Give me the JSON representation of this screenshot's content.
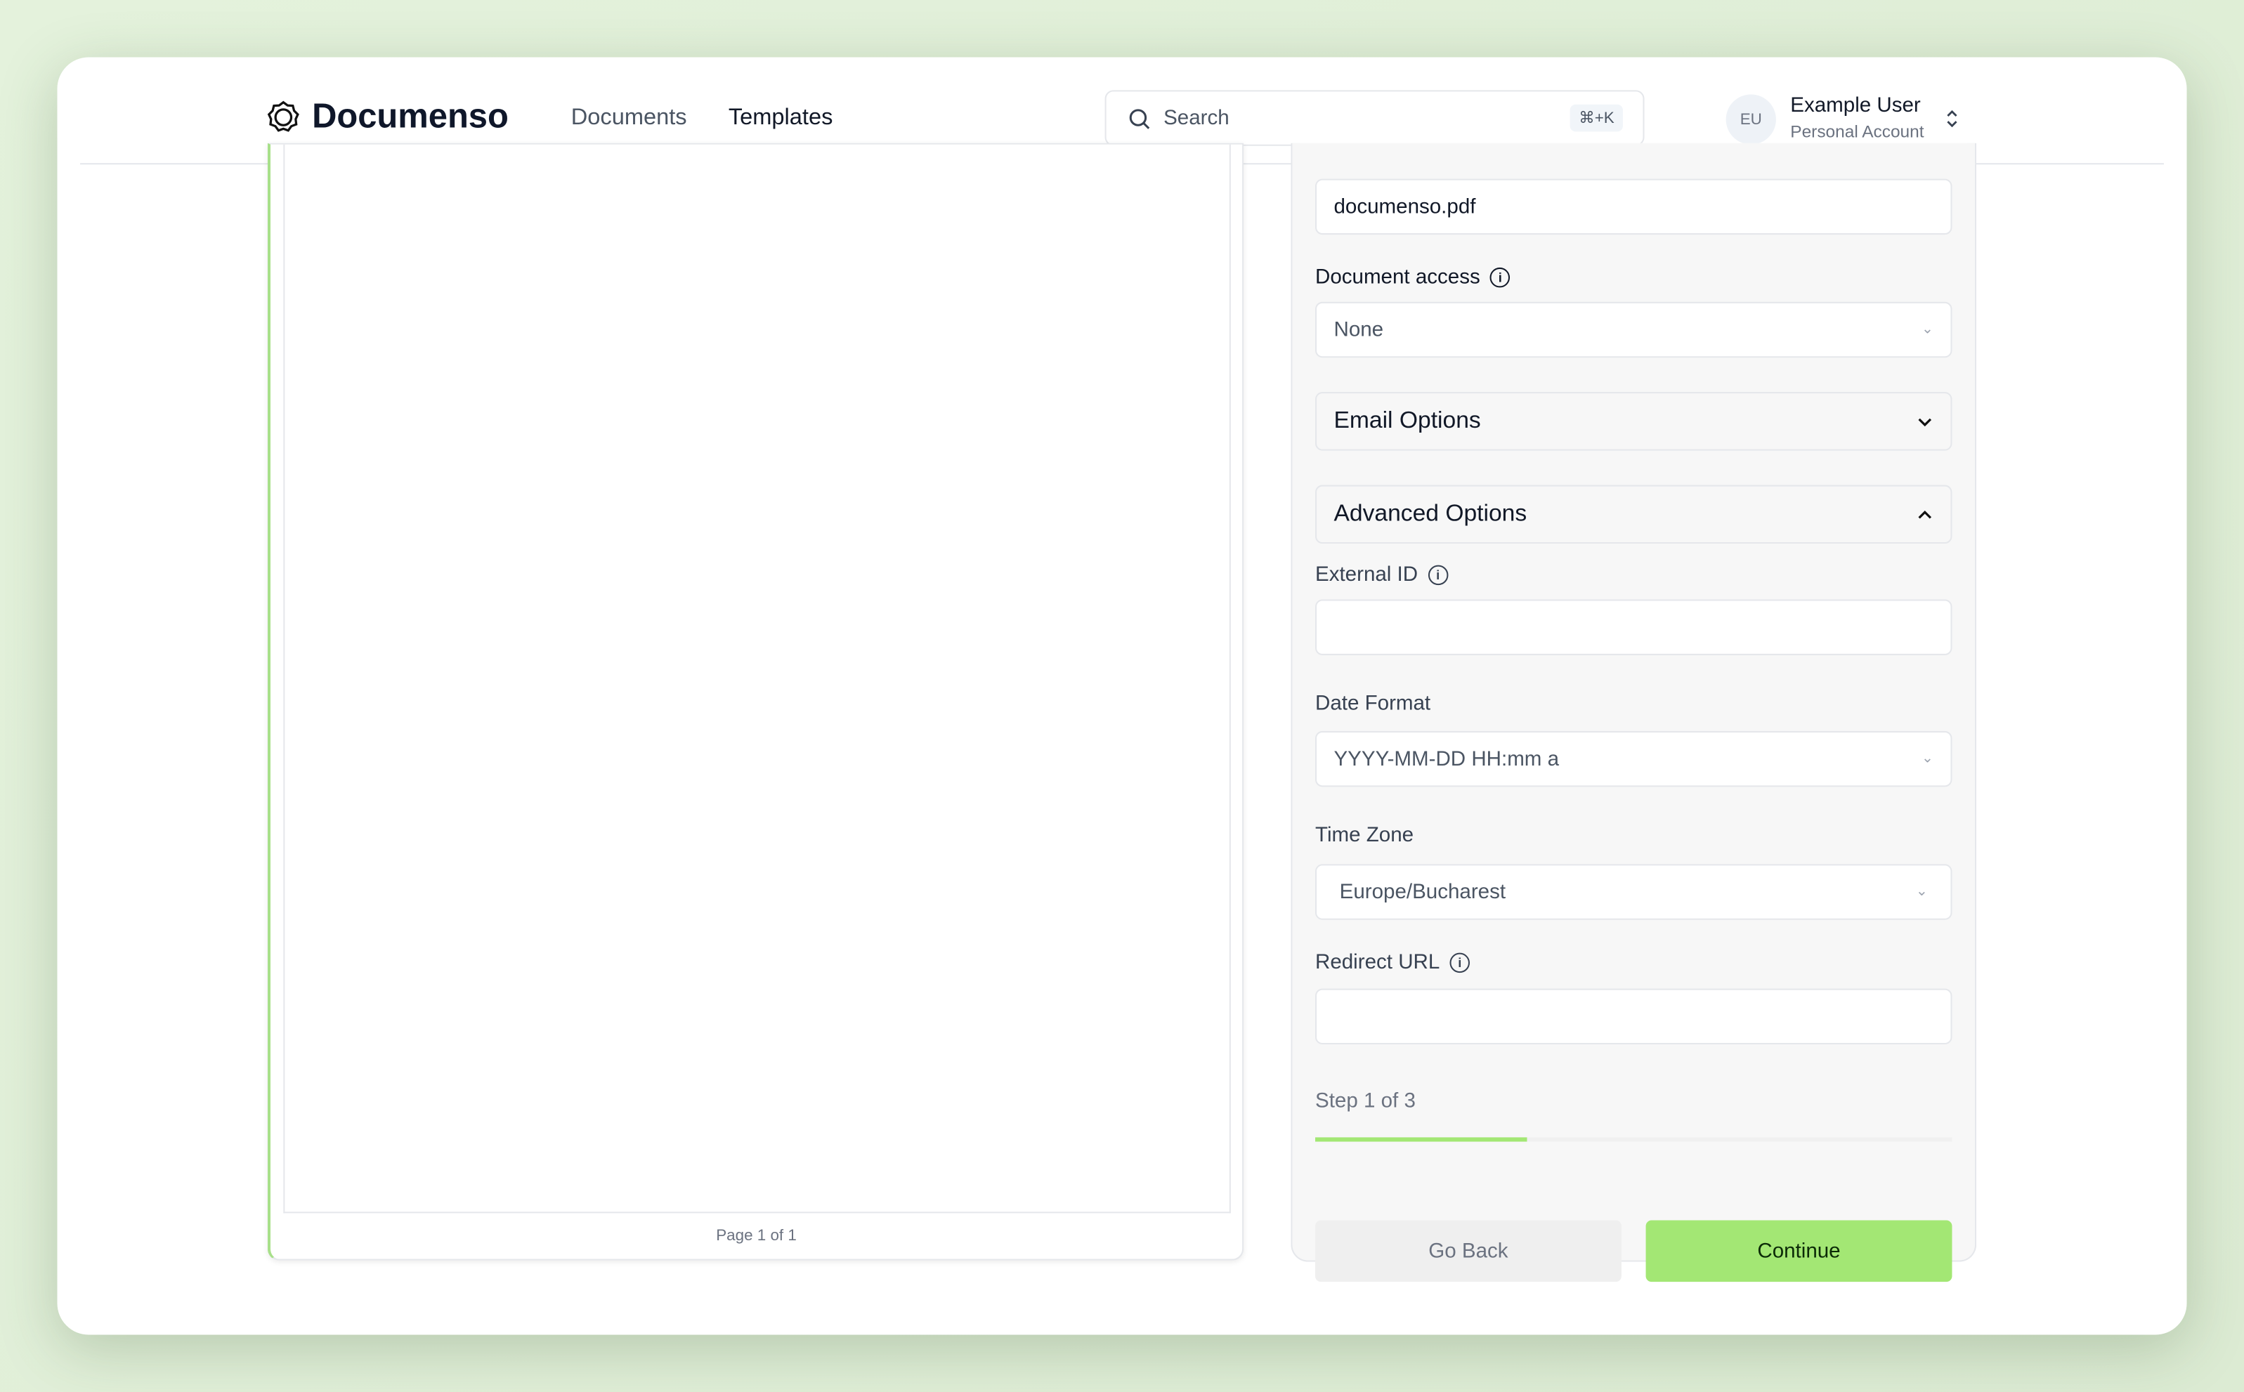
{
  "header": {
    "brand": "Documenso",
    "nav": [
      "Documents",
      "Templates"
    ],
    "search_placeholder": "Search",
    "search_shortcut": "⌘+K",
    "user": {
      "initials": "EU",
      "name": "Example User",
      "account": "Personal Account"
    }
  },
  "preview": {
    "page_label": "Page 1 of 1"
  },
  "form": {
    "title_value": "documenso.pdf",
    "document_access_label": "Document access",
    "document_access_value": "None",
    "email_options_label": "Email Options",
    "advanced_options_label": "Advanced Options",
    "external_id_label": "External ID",
    "external_id_value": "",
    "date_format_label": "Date Format",
    "date_format_value": "YYYY-MM-DD HH:mm a",
    "time_zone_label": "Time Zone",
    "time_zone_value": "Europe/Bucharest",
    "redirect_url_label": "Redirect URL",
    "redirect_url_value": "",
    "step_label": "Step 1 of 3",
    "progress_fraction": 0.333,
    "go_back": "Go Back",
    "continue": "Continue"
  },
  "colors": {
    "accent": "#a3e774",
    "progress": "#a3e774"
  }
}
